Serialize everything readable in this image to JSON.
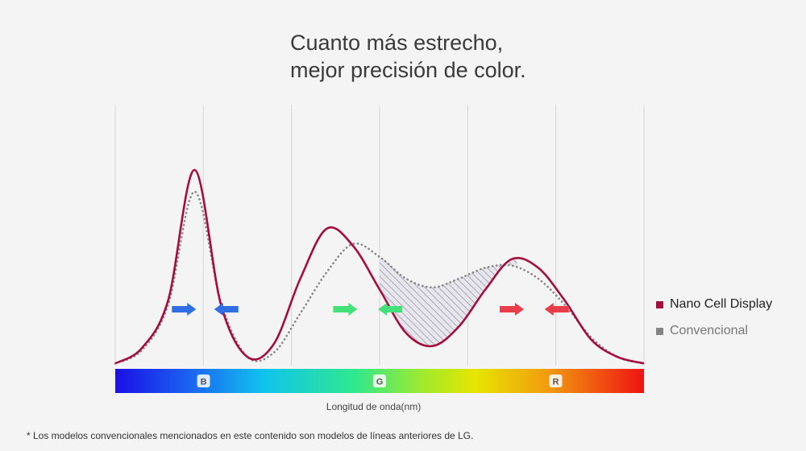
{
  "title_lines": [
    "Cuanto más estrecho,",
    "mejor precisión de color."
  ],
  "legend": {
    "nano": "Nano Cell Display",
    "conventional": "Convencional"
  },
  "xlabel": "Longitud de onda(nm)",
  "footnote": "* Los modelos convencionales mencionados en este contenido son modelos de líneas anteriores de LG.",
  "colors": {
    "nano": "#a50d3f",
    "conventional": "#858585",
    "blue_arrow": "#2f6fe3",
    "green_arrow": "#44e07a",
    "red_arrow": "#ea3d4b",
    "gridline": "#d6d6d6"
  },
  "chart_data": {
    "type": "line",
    "title": "Cuanto más estrecho, mejor precisión de color.",
    "xlabel": "Longitud de onda(nm)",
    "ylabel": "",
    "x": [
      0,
      5,
      10,
      15,
      20,
      25,
      30,
      35,
      40,
      45,
      50,
      55,
      60,
      65,
      70,
      75,
      80,
      85,
      90,
      95,
      100
    ],
    "xlim": [
      0,
      100
    ],
    "ylim": [
      0,
      1
    ],
    "band_labels": [
      {
        "label": "B",
        "x": 16.7
      },
      {
        "label": "G",
        "x": 50
      },
      {
        "label": "R",
        "x": 83.3
      }
    ],
    "series": [
      {
        "name": "Nano Cell Display",
        "style": "solid",
        "values": [
          0.01,
          0.08,
          0.3,
          0.9,
          0.28,
          0.04,
          0.1,
          0.4,
          0.63,
          0.55,
          0.35,
          0.15,
          0.09,
          0.18,
          0.35,
          0.49,
          0.45,
          0.3,
          0.12,
          0.04,
          0.01
        ]
      },
      {
        "name": "Convencional",
        "style": "dotted",
        "values": [
          0.01,
          0.07,
          0.28,
          0.8,
          0.29,
          0.04,
          0.06,
          0.24,
          0.43,
          0.56,
          0.5,
          0.4,
          0.36,
          0.4,
          0.45,
          0.46,
          0.4,
          0.28,
          0.13,
          0.04,
          0.01
        ]
      }
    ],
    "arrows": [
      {
        "band": "B",
        "x": 13,
        "direction": "right"
      },
      {
        "band": "B",
        "x": 21,
        "direction": "left"
      },
      {
        "band": "G",
        "x": 43.5,
        "direction": "right"
      },
      {
        "band": "G",
        "x": 52,
        "direction": "left"
      },
      {
        "band": "R",
        "x": 75,
        "direction": "right"
      },
      {
        "band": "R",
        "x": 83.5,
        "direction": "left"
      }
    ],
    "shaded_region": {
      "x_start": 50,
      "x_end": 76,
      "description": "narrower difference"
    }
  }
}
